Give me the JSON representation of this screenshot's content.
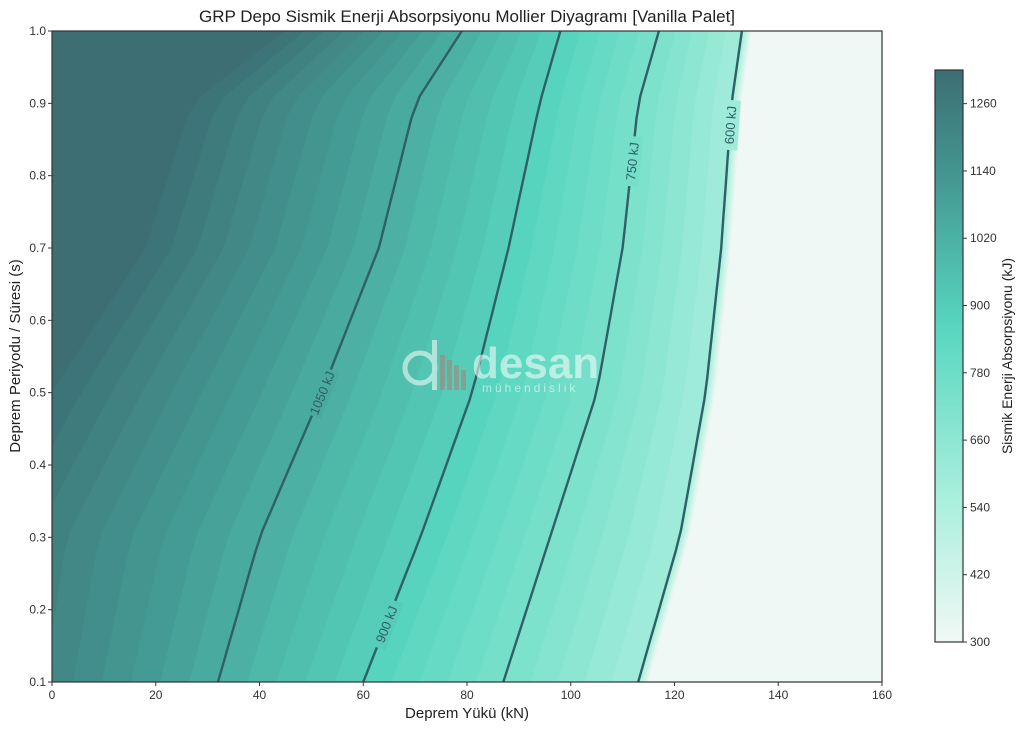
{
  "chart_data": {
    "type": "heatmap",
    "title": "GRP Depo Sismik Enerji Absorpsiyonu Mollier Diyagramı [Vanilla Palet]",
    "xlabel": "Deprem Yükü (kN)",
    "ylabel": "Deprem Periyodu / Süresi (s)",
    "xlim": [
      0,
      160
    ],
    "ylim": [
      0.1,
      1.0
    ],
    "x_ticks": [
      0,
      20,
      40,
      60,
      80,
      100,
      120,
      140,
      160
    ],
    "y_ticks": [
      0.1,
      0.2,
      0.3,
      0.4,
      0.5,
      0.6,
      0.7,
      0.8,
      0.9,
      1.0
    ],
    "grid": false,
    "colorbar": {
      "label": "Sismik Enerji Absorpsiyonu (kJ)",
      "range": [
        300,
        1320
      ],
      "ticks": [
        300,
        420,
        540,
        660,
        780,
        900,
        1020,
        1140,
        1260
      ]
    },
    "contour_lines": [
      {
        "level": 1050,
        "label": "1050 kJ",
        "x_at_y": [
          [
            0.1,
            32
          ],
          [
            0.3,
            40
          ],
          [
            0.5,
            52
          ],
          [
            0.7,
            63
          ],
          [
            0.9,
            70
          ],
          [
            1.0,
            79
          ]
        ]
      },
      {
        "level": 900,
        "label": "900 kJ",
        "x_at_y": [
          [
            0.1,
            60
          ],
          [
            0.3,
            71
          ],
          [
            0.5,
            81
          ],
          [
            0.7,
            88
          ],
          [
            0.9,
            94
          ],
          [
            1.0,
            98
          ]
        ]
      },
      {
        "level": 750,
        "label": "750 kJ",
        "x_at_y": [
          [
            0.1,
            87
          ],
          [
            0.3,
            96
          ],
          [
            0.5,
            105
          ],
          [
            0.7,
            110
          ],
          [
            0.9,
            113
          ],
          [
            1.0,
            117
          ]
        ]
      },
      {
        "level": 600,
        "label": "600 kJ",
        "x_at_y": [
          [
            0.1,
            113
          ],
          [
            0.3,
            121
          ],
          [
            0.5,
            126
          ],
          [
            0.7,
            129
          ],
          [
            0.9,
            131
          ],
          [
            1.0,
            133
          ]
        ]
      }
    ]
  },
  "watermark": {
    "name": "desan",
    "sub": "mühendislik"
  },
  "colors": {
    "dark": "#3c6e74",
    "mid": "#58d6bf",
    "light": "#f0f8f5",
    "contour": "#2f6068",
    "watermark_bars": "#a98078"
  }
}
